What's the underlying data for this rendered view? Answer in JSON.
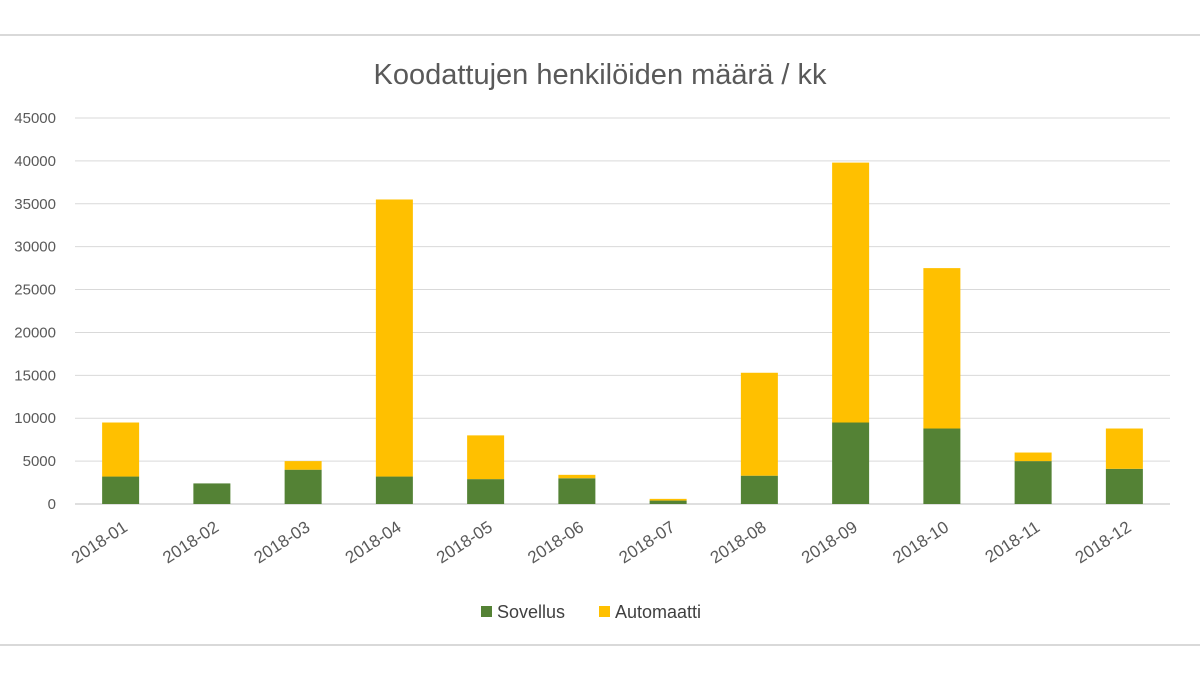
{
  "chart_data": {
    "type": "bar",
    "stacked": true,
    "title": "Koodattujen henkilöiden määrä / kk",
    "xlabel": "",
    "ylabel": "",
    "categories": [
      "2018-01",
      "2018-02",
      "2018-03",
      "2018-04",
      "2018-05",
      "2018-06",
      "2018-07",
      "2018-08",
      "2018-09",
      "2018-10",
      "2018-11",
      "2018-12"
    ],
    "series": [
      {
        "name": "Sovellus",
        "color": "#548235",
        "values": [
          3200,
          2400,
          4000,
          3200,
          2900,
          3000,
          400,
          3300,
          9500,
          8800,
          5000,
          4100
        ]
      },
      {
        "name": "Automaatti",
        "color": "#ffc000",
        "values": [
          6300,
          0,
          1000,
          32300,
          5100,
          400,
          200,
          12000,
          30300,
          18700,
          1000,
          4700
        ]
      }
    ],
    "ylim": [
      0,
      45000
    ],
    "yticks": [
      0,
      5000,
      10000,
      15000,
      20000,
      25000,
      30000,
      35000,
      40000,
      45000
    ],
    "grid": true,
    "legend_position": "bottom"
  }
}
